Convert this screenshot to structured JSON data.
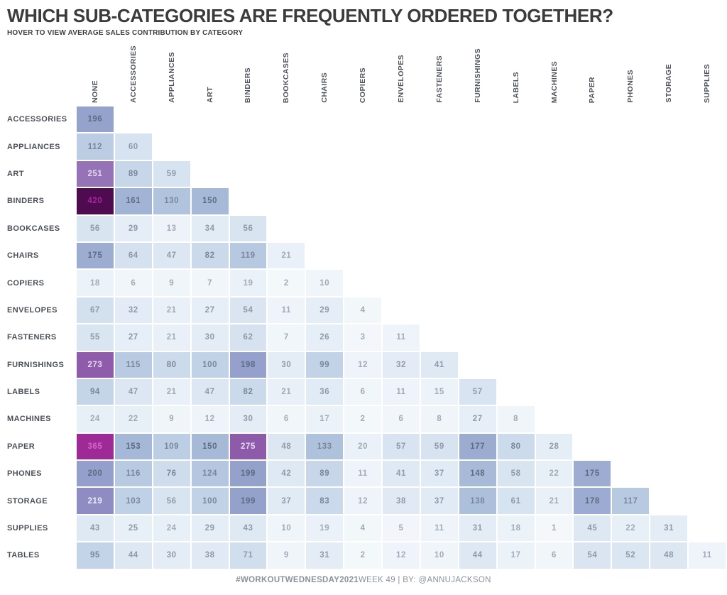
{
  "header": {
    "title": "WHICH SUB-CATEGORIES ARE FREQUENTLY ORDERED TOGETHER?",
    "subtitle": "HOVER TO VIEW AVERAGE SALES CONTRIBUTION BY CATEGORY"
  },
  "footer": {
    "hashtag": "#WORKOUTWEDNESDAY",
    "year": "2021",
    "rest": " WEEK 49 | BY: @ANNUJACKSON"
  },
  "chart_data": {
    "type": "heatmap",
    "layout": "lower-triangle",
    "columns": [
      "NONE",
      "ACCESSORIES",
      "APPLIANCES",
      "ART",
      "BINDERS",
      "BOOKCASES",
      "CHAIRS",
      "COPIERS",
      "ENVELOPES",
      "FASTENERS",
      "FURNISHINGS",
      "LABELS",
      "MACHINES",
      "PAPER",
      "PHONES",
      "STORAGE",
      "SUPPLIES"
    ],
    "rows": [
      "ACCESSORIES",
      "APPLIANCES",
      "ART",
      "BINDERS",
      "BOOKCASES",
      "CHAIRS",
      "COPIERS",
      "ENVELOPES",
      "FASTENERS",
      "FURNISHINGS",
      "LABELS",
      "MACHINES",
      "PAPER",
      "PHONES",
      "STORAGE",
      "SUPPLIES",
      "TABLES"
    ],
    "values": [
      [
        196
      ],
      [
        112,
        60
      ],
      [
        251,
        89,
        59
      ],
      [
        420,
        161,
        130,
        150
      ],
      [
        56,
        29,
        13,
        34,
        56
      ],
      [
        175,
        64,
        47,
        82,
        119,
        21
      ],
      [
        18,
        6,
        9,
        7,
        19,
        2,
        10
      ],
      [
        67,
        32,
        21,
        27,
        54,
        11,
        29,
        4
      ],
      [
        55,
        27,
        21,
        30,
        62,
        7,
        26,
        3,
        11
      ],
      [
        273,
        115,
        80,
        100,
        198,
        30,
        99,
        12,
        32,
        41
      ],
      [
        94,
        47,
        21,
        47,
        82,
        21,
        36,
        6,
        11,
        15,
        57
      ],
      [
        24,
        22,
        9,
        12,
        30,
        6,
        17,
        2,
        6,
        8,
        27,
        8
      ],
      [
        365,
        153,
        109,
        150,
        275,
        48,
        133,
        20,
        57,
        59,
        177,
        80,
        28
      ],
      [
        200,
        116,
        76,
        124,
        199,
        42,
        89,
        11,
        41,
        37,
        148,
        58,
        22,
        175
      ],
      [
        219,
        103,
        56,
        100,
        199,
        37,
        83,
        12,
        38,
        37,
        138,
        61,
        21,
        178,
        117
      ],
      [
        43,
        25,
        24,
        29,
        43,
        10,
        19,
        4,
        5,
        11,
        31,
        18,
        1,
        45,
        22,
        31
      ],
      [
        95,
        44,
        30,
        38,
        71,
        9,
        31,
        2,
        12,
        10,
        44,
        17,
        6,
        54,
        52,
        48,
        11
      ]
    ],
    "value_range": [
      1,
      420
    ],
    "color_scale_stops": [
      [
        1,
        "#f4f8fb"
      ],
      [
        30,
        "#e4edf6"
      ],
      [
        60,
        "#d7e3f0"
      ],
      [
        100,
        "#c1d2e7"
      ],
      [
        150,
        "#a6bad8"
      ],
      [
        200,
        "#94a0cb"
      ],
      [
        222,
        "#8e89c2"
      ],
      [
        252,
        "#9671b6"
      ],
      [
        280,
        "#8c55a7"
      ],
      [
        365,
        "#9e2a97"
      ],
      [
        420,
        "#4f0b50"
      ]
    ]
  }
}
